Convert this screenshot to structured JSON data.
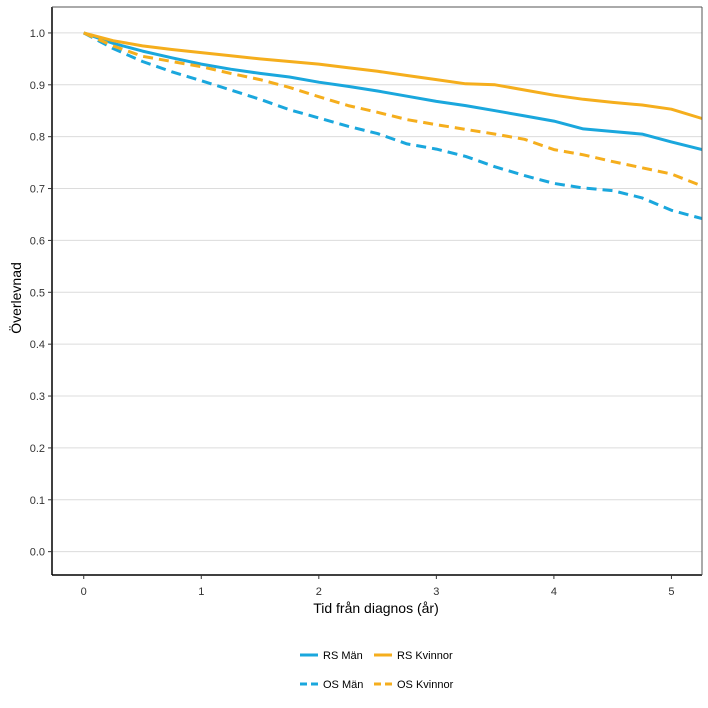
{
  "chart_data": {
    "type": "line",
    "title": "",
    "xlabel": "Tid från diagnos (år)",
    "ylabel": "Överlevnad",
    "xlim": [
      -0.27,
      5.26
    ],
    "ylim": [
      -0.045,
      1.05
    ],
    "x_ticks": [
      0,
      1,
      2,
      3,
      4,
      5
    ],
    "x_tick_labels": [
      "0",
      "1",
      "2",
      "3",
      "4",
      "5"
    ],
    "y_ticks": [
      0.0,
      0.1,
      0.2,
      0.3,
      0.4,
      0.5,
      0.6,
      0.7,
      0.8,
      0.9,
      1.0
    ],
    "y_tick_labels": [
      "0.0",
      "0.1",
      "0.2",
      "0.3",
      "0.4",
      "0.5",
      "0.6",
      "0.7",
      "0.8",
      "0.9",
      "1.0"
    ],
    "grid": "horizontal",
    "legend_position": "bottom",
    "colors": {
      "man": "#1aa7dd",
      "kvinnor": "#f5ae1d",
      "grid": "#dcdcdc",
      "axis": "#000000"
    },
    "series": [
      {
        "name": "RS Män",
        "style": "solid",
        "color": "#1aa7dd",
        "x": [
          0,
          0.25,
          0.5,
          0.75,
          1.0,
          1.25,
          1.5,
          1.75,
          2.0,
          2.25,
          2.5,
          2.75,
          3.0,
          3.25,
          3.5,
          3.75,
          4.0,
          4.25,
          4.5,
          4.75,
          5.0,
          5.26
        ],
        "y": [
          1.0,
          0.98,
          0.965,
          0.952,
          0.94,
          0.93,
          0.922,
          0.915,
          0.905,
          0.897,
          0.888,
          0.878,
          0.868,
          0.86,
          0.85,
          0.84,
          0.83,
          0.815,
          0.81,
          0.805,
          0.79,
          0.775
        ]
      },
      {
        "name": "RS Kvinnor",
        "style": "solid",
        "color": "#f5ae1d",
        "x": [
          0,
          0.25,
          0.5,
          0.75,
          1.0,
          1.25,
          1.5,
          1.75,
          2.0,
          2.25,
          2.5,
          2.75,
          3.0,
          3.25,
          3.5,
          3.75,
          4.0,
          4.25,
          4.5,
          4.75,
          5.0,
          5.26
        ],
        "y": [
          1.0,
          0.985,
          0.975,
          0.968,
          0.962,
          0.956,
          0.95,
          0.945,
          0.94,
          0.933,
          0.926,
          0.918,
          0.91,
          0.902,
          0.9,
          0.89,
          0.88,
          0.872,
          0.866,
          0.861,
          0.853,
          0.835
        ]
      },
      {
        "name": "OS Män",
        "style": "dashed",
        "color": "#1aa7dd",
        "x": [
          0,
          0.25,
          0.5,
          0.75,
          1.0,
          1.25,
          1.5,
          1.75,
          2.0,
          2.25,
          2.5,
          2.75,
          3.0,
          3.25,
          3.5,
          3.75,
          4.0,
          4.25,
          4.5,
          4.75,
          5.0,
          5.26
        ],
        "y": [
          1.0,
          0.97,
          0.945,
          0.925,
          0.908,
          0.89,
          0.872,
          0.852,
          0.836,
          0.82,
          0.806,
          0.786,
          0.776,
          0.762,
          0.742,
          0.725,
          0.71,
          0.701,
          0.696,
          0.682,
          0.658,
          0.642
        ]
      },
      {
        "name": "OS Kvinnor",
        "style": "dashed",
        "color": "#f5ae1d",
        "x": [
          0,
          0.25,
          0.5,
          0.75,
          1.0,
          1.25,
          1.5,
          1.75,
          2.0,
          2.25,
          2.5,
          2.75,
          3.0,
          3.25,
          3.5,
          3.75,
          4.0,
          4.25,
          4.5,
          4.75,
          5.0,
          5.26
        ],
        "y": [
          1.0,
          0.975,
          0.955,
          0.945,
          0.935,
          0.922,
          0.91,
          0.895,
          0.877,
          0.86,
          0.847,
          0.833,
          0.823,
          0.814,
          0.805,
          0.795,
          0.775,
          0.765,
          0.752,
          0.74,
          0.728,
          0.705
        ]
      }
    ]
  }
}
